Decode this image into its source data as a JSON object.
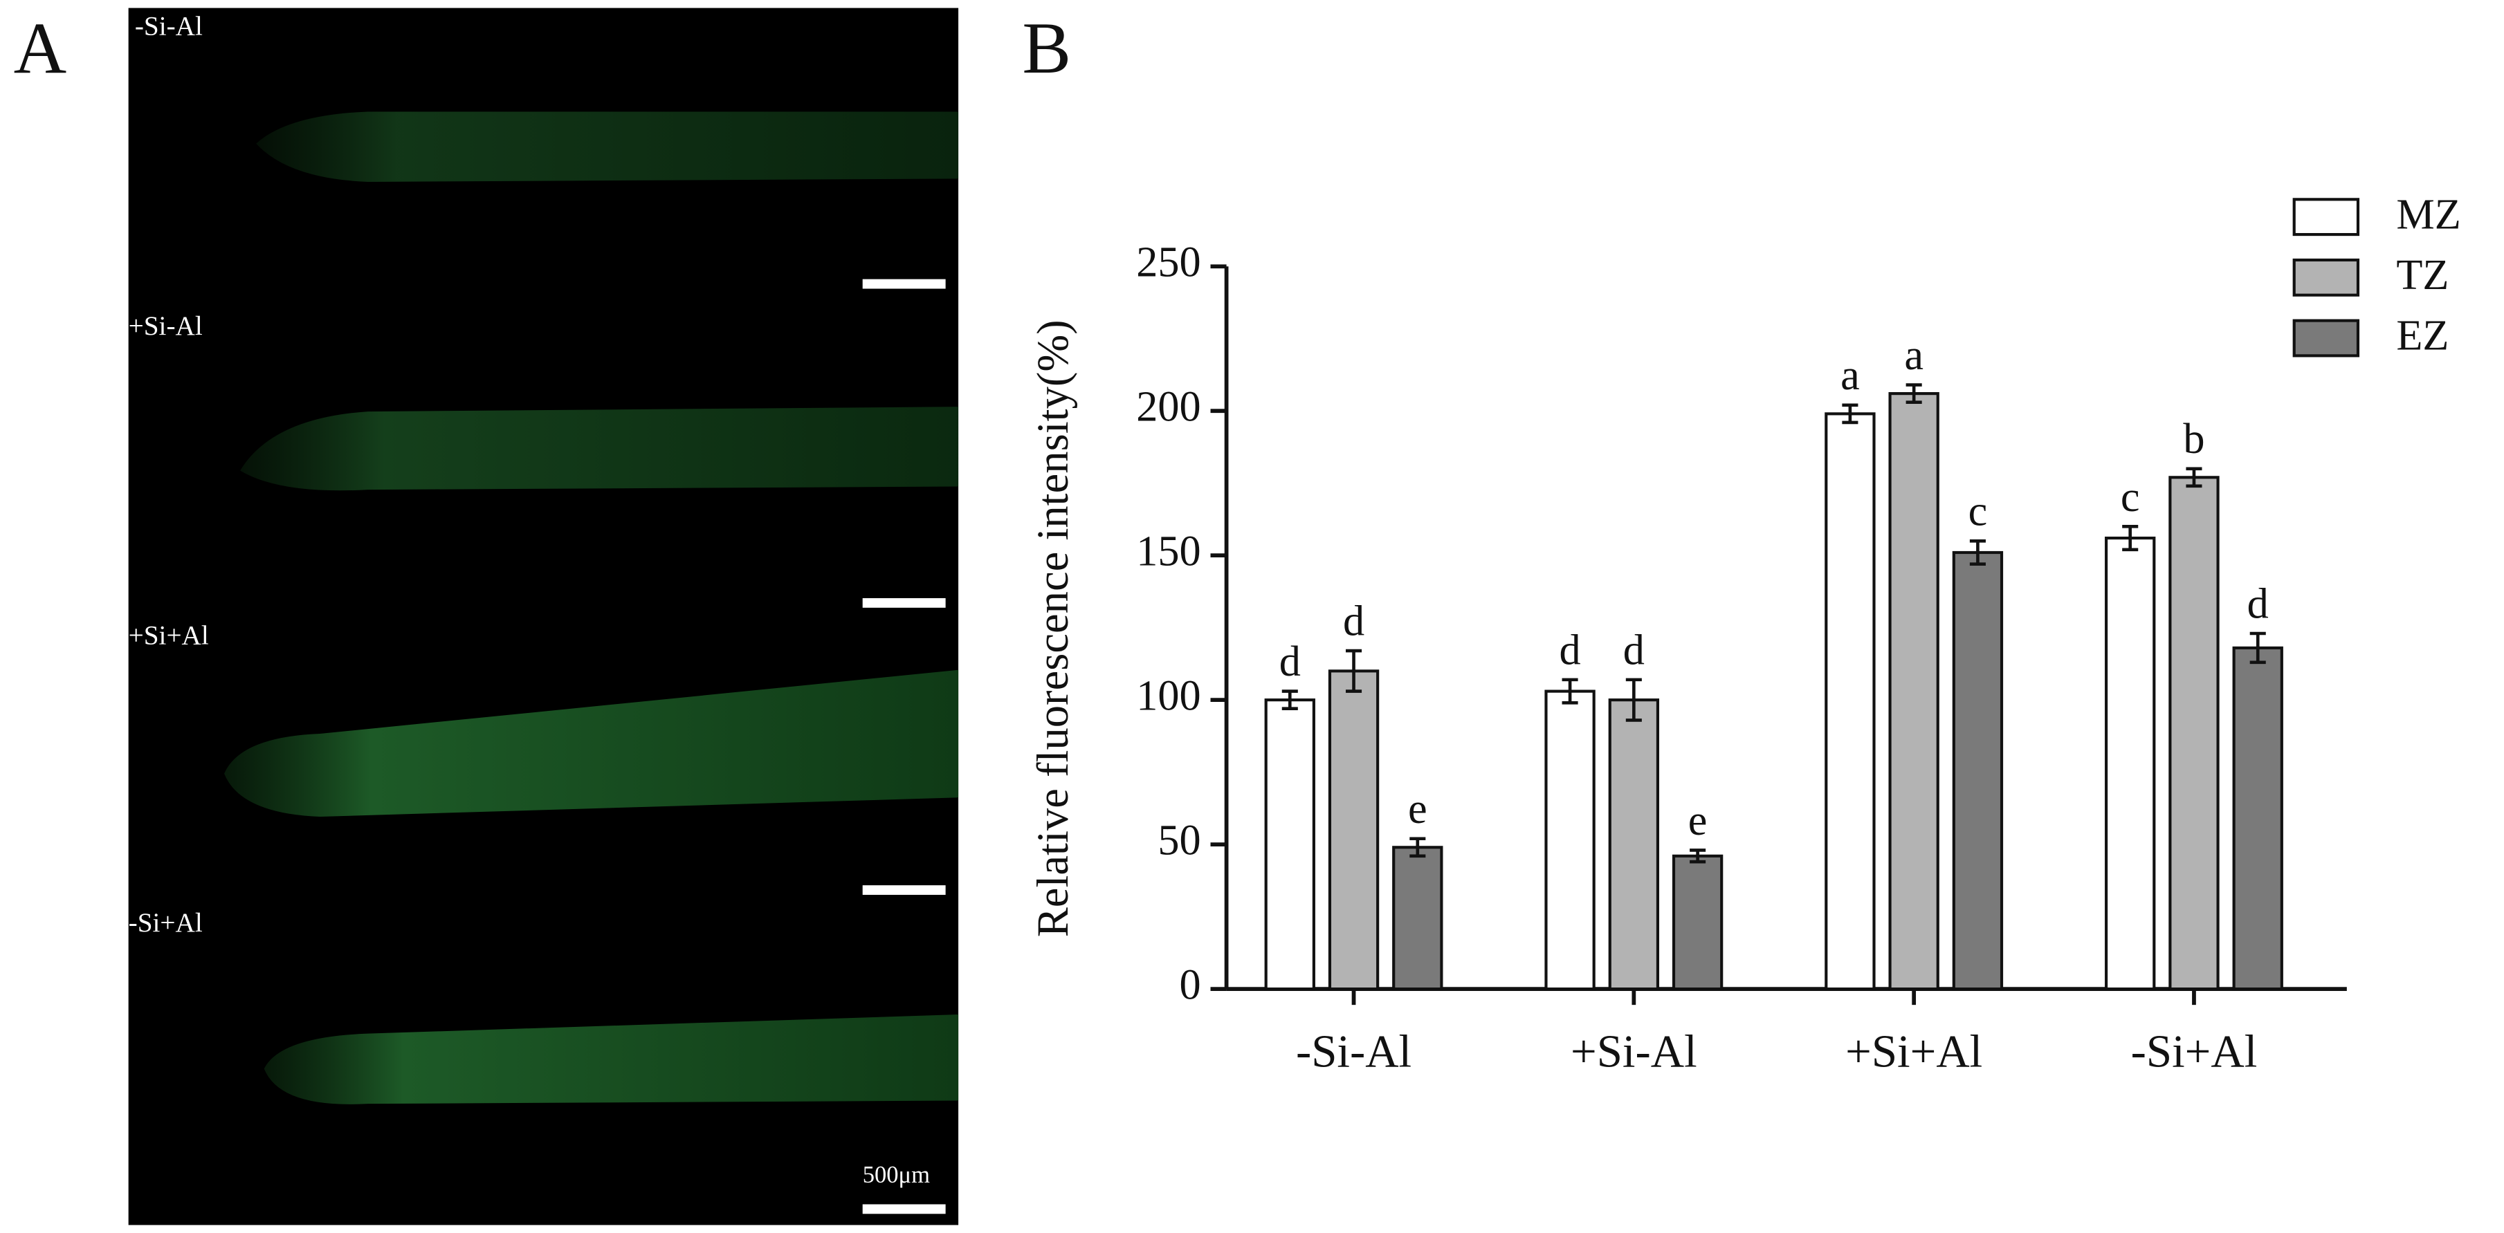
{
  "panel_a": {
    "label": "A",
    "image_labels": [
      "-Si-Al",
      "+Si-Al",
      "+Si+Al",
      "-Si+Al"
    ],
    "scale_label": "500μm"
  },
  "chart_data": {
    "type": "bar",
    "panel_label": "B",
    "y_label": "Relative fluorescence intensity(%)",
    "categories": [
      "-Si-Al",
      "+Si-Al",
      "+Si+Al",
      "-Si+Al"
    ],
    "series": [
      {
        "name": "MZ",
        "color": "#ffffff",
        "values": [
          100,
          103,
          199,
          156
        ],
        "errors": [
          3,
          4,
          3,
          4
        ],
        "letters": [
          "d",
          "d",
          "a",
          "c"
        ]
      },
      {
        "name": "TZ",
        "color": "#b3b3b3",
        "values": [
          110,
          100,
          206,
          177
        ],
        "errors": [
          7,
          7,
          3,
          3
        ],
        "letters": [
          "d",
          "d",
          "a",
          "b"
        ]
      },
      {
        "name": "EZ",
        "color": "#7a7a7a",
        "values": [
          49,
          46,
          151,
          118
        ],
        "errors": [
          3,
          2,
          4,
          5
        ],
        "letters": [
          "e",
          "e",
          "c",
          "d"
        ]
      }
    ],
    "ylim": [
      0,
      250
    ],
    "yticks": [
      0,
      50,
      100,
      150,
      200,
      250
    ],
    "grid": false,
    "legend": "top-right"
  }
}
